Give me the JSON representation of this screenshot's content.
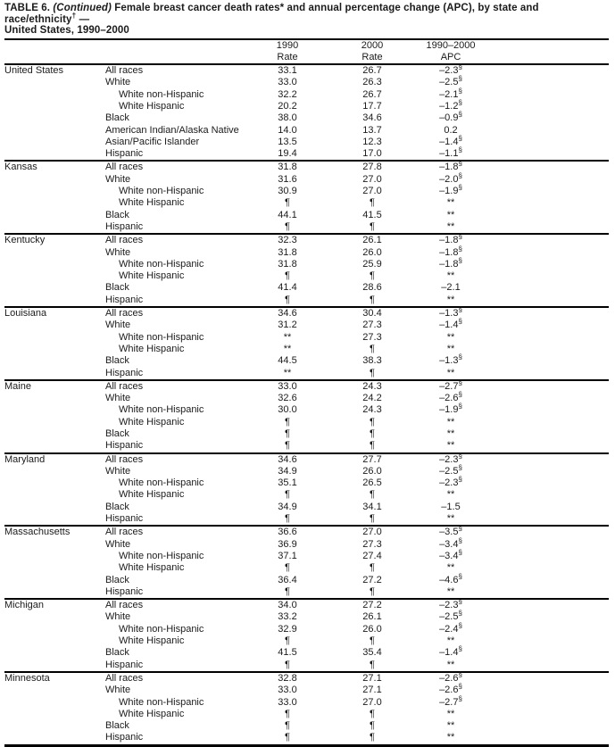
{
  "page": {
    "background": "#ffffff",
    "text_color": "#1b1b1b",
    "rule_color": "#000000"
  },
  "title": {
    "label": "TABLE 6.",
    "continued": "(Continued)",
    "segment1": "Female breast cancer death rates",
    "sup_rates": "*",
    "segment2": "and annual percentage change (APC), by state and race/ethnicity",
    "sup_ethnicity": "†",
    "dash": "—",
    "line2": "United States, 1990–2000"
  },
  "table": {
    "header": {
      "c1990": {
        "line1": "1990",
        "line2": "Rate"
      },
      "c2000": {
        "line1": "2000",
        "line2": "Rate"
      },
      "capc": {
        "line1": "1990–2000",
        "line2": "APC"
      }
    },
    "symbols": {
      "suppressed": "¶",
      "not_calculated": "**",
      "statistically_significant": "§"
    },
    "sections": [
      {
        "state": "United States",
        "rows": [
          {
            "race": "All races",
            "indent": false,
            "rate_1990": "33.1",
            "rate_2000": "26.7",
            "apc": "–2.3§"
          },
          {
            "race": "White",
            "indent": false,
            "rate_1990": "33.0",
            "rate_2000": "26.3",
            "apc": "–2.5§"
          },
          {
            "race": "White non-Hispanic",
            "indent": true,
            "rate_1990": "32.2",
            "rate_2000": "26.7",
            "apc": "–2.1§"
          },
          {
            "race": "White Hispanic",
            "indent": true,
            "rate_1990": "20.2",
            "rate_2000": "17.7",
            "apc": "–1.2§"
          },
          {
            "race": "Black",
            "indent": false,
            "rate_1990": "38.0",
            "rate_2000": "34.6",
            "apc": "–0.9§"
          },
          {
            "race": "American Indian/Alaska Native",
            "indent": false,
            "rate_1990": "14.0",
            "rate_2000": "13.7",
            "apc": "0.2"
          },
          {
            "race": "Asian/Pacific Islander",
            "indent": false,
            "rate_1990": "13.5",
            "rate_2000": "12.3",
            "apc": "–1.4§"
          },
          {
            "race": "Hispanic",
            "indent": false,
            "rate_1990": "19.4",
            "rate_2000": "17.0",
            "apc": "–1.1§"
          }
        ]
      },
      {
        "state": "Kansas",
        "rows": [
          {
            "race": "All races",
            "indent": false,
            "rate_1990": "31.8",
            "rate_2000": "27.8",
            "apc": "–1.8§"
          },
          {
            "race": "White",
            "indent": false,
            "rate_1990": "31.6",
            "rate_2000": "27.0",
            "apc": "–2.0§"
          },
          {
            "race": "White non-Hispanic",
            "indent": true,
            "rate_1990": "30.9",
            "rate_2000": "27.0",
            "apc": "–1.9§"
          },
          {
            "race": "White Hispanic",
            "indent": true,
            "rate_1990": "¶",
            "rate_2000": "¶",
            "apc": "**"
          },
          {
            "race": "Black",
            "indent": false,
            "rate_1990": "44.1",
            "rate_2000": "41.5",
            "apc": "**"
          },
          {
            "race": "Hispanic",
            "indent": false,
            "rate_1990": "¶",
            "rate_2000": "¶",
            "apc": "**"
          }
        ]
      },
      {
        "state": "Kentucky",
        "rows": [
          {
            "race": "All races",
            "indent": false,
            "rate_1990": "32.3",
            "rate_2000": "26.1",
            "apc": "–1.8§"
          },
          {
            "race": "White",
            "indent": false,
            "rate_1990": "31.8",
            "rate_2000": "26.0",
            "apc": "–1.8§"
          },
          {
            "race": "White non-Hispanic",
            "indent": true,
            "rate_1990": "31.8",
            "rate_2000": "25.9",
            "apc": "–1.8§"
          },
          {
            "race": "White Hispanic",
            "indent": true,
            "rate_1990": "¶",
            "rate_2000": "¶",
            "apc": "**"
          },
          {
            "race": "Black",
            "indent": false,
            "rate_1990": "41.4",
            "rate_2000": "28.6",
            "apc": "–2.1"
          },
          {
            "race": "Hispanic",
            "indent": false,
            "rate_1990": "¶",
            "rate_2000": "¶",
            "apc": "**"
          }
        ]
      },
      {
        "state": "Louisiana",
        "rows": [
          {
            "race": "All races",
            "indent": false,
            "rate_1990": "34.6",
            "rate_2000": "30.4",
            "apc": "–1.3§"
          },
          {
            "race": "White",
            "indent": false,
            "rate_1990": "31.2",
            "rate_2000": "27.3",
            "apc": "–1.4§"
          },
          {
            "race": "White non-Hispanic",
            "indent": true,
            "rate_1990": "**",
            "rate_2000": "27.3",
            "apc": "**"
          },
          {
            "race": "White Hispanic",
            "indent": true,
            "rate_1990": "**",
            "rate_2000": "¶",
            "apc": "**"
          },
          {
            "race": "Black",
            "indent": false,
            "rate_1990": "44.5",
            "rate_2000": "38.3",
            "apc": "–1.3§"
          },
          {
            "race": "Hispanic",
            "indent": false,
            "rate_1990": "**",
            "rate_2000": "¶",
            "apc": "**"
          }
        ]
      },
      {
        "state": "Maine",
        "rows": [
          {
            "race": "All races",
            "indent": false,
            "rate_1990": "33.0",
            "rate_2000": "24.3",
            "apc": "–2.7§"
          },
          {
            "race": "White",
            "indent": false,
            "rate_1990": "32.6",
            "rate_2000": "24.2",
            "apc": "–2.6§"
          },
          {
            "race": "White non-Hispanic",
            "indent": true,
            "rate_1990": "30.0",
            "rate_2000": "24.3",
            "apc": "–1.9§"
          },
          {
            "race": "White Hispanic",
            "indent": true,
            "rate_1990": "¶",
            "rate_2000": "¶",
            "apc": "**"
          },
          {
            "race": "Black",
            "indent": false,
            "rate_1990": "¶",
            "rate_2000": "¶",
            "apc": "**"
          },
          {
            "race": "Hispanic",
            "indent": false,
            "rate_1990": "¶",
            "rate_2000": "¶",
            "apc": "**"
          }
        ]
      },
      {
        "state": "Maryland",
        "rows": [
          {
            "race": "All races",
            "indent": false,
            "rate_1990": "34.6",
            "rate_2000": "27.7",
            "apc": "–2.3§"
          },
          {
            "race": "White",
            "indent": false,
            "rate_1990": "34.9",
            "rate_2000": "26.0",
            "apc": "–2.5§"
          },
          {
            "race": "White non-Hispanic",
            "indent": true,
            "rate_1990": "35.1",
            "rate_2000": "26.5",
            "apc": "–2.3§"
          },
          {
            "race": "White Hispanic",
            "indent": true,
            "rate_1990": "¶",
            "rate_2000": "¶",
            "apc": "**"
          },
          {
            "race": "Black",
            "indent": false,
            "rate_1990": "34.9",
            "rate_2000": "34.1",
            "apc": "–1.5"
          },
          {
            "race": "Hispanic",
            "indent": false,
            "rate_1990": "¶",
            "rate_2000": "¶",
            "apc": "**"
          }
        ]
      },
      {
        "state": "Massachusetts",
        "rows": [
          {
            "race": "All races",
            "indent": false,
            "rate_1990": "36.6",
            "rate_2000": "27.0",
            "apc": "–3.5§"
          },
          {
            "race": "White",
            "indent": false,
            "rate_1990": "36.9",
            "rate_2000": "27.3",
            "apc": "–3.4§"
          },
          {
            "race": "White non-Hispanic",
            "indent": true,
            "rate_1990": "37.1",
            "rate_2000": "27.4",
            "apc": "–3.4§"
          },
          {
            "race": "White Hispanic",
            "indent": true,
            "rate_1990": "¶",
            "rate_2000": "¶",
            "apc": "**"
          },
          {
            "race": "Black",
            "indent": false,
            "rate_1990": "36.4",
            "rate_2000": "27.2",
            "apc": "–4.6§"
          },
          {
            "race": "Hispanic",
            "indent": false,
            "rate_1990": "¶",
            "rate_2000": "¶",
            "apc": "**"
          }
        ]
      },
      {
        "state": "Michigan",
        "rows": [
          {
            "race": "All races",
            "indent": false,
            "rate_1990": "34.0",
            "rate_2000": "27.2",
            "apc": "–2.3§"
          },
          {
            "race": "White",
            "indent": false,
            "rate_1990": "33.2",
            "rate_2000": "26.1",
            "apc": "–2.5§"
          },
          {
            "race": "White non-Hispanic",
            "indent": true,
            "rate_1990": "32.9",
            "rate_2000": "26.0",
            "apc": "–2.4§"
          },
          {
            "race": "White Hispanic",
            "indent": true,
            "rate_1990": "¶",
            "rate_2000": "¶",
            "apc": "**"
          },
          {
            "race": "Black",
            "indent": false,
            "rate_1990": "41.5",
            "rate_2000": "35.4",
            "apc": "–1.4§"
          },
          {
            "race": "Hispanic",
            "indent": false,
            "rate_1990": "¶",
            "rate_2000": "¶",
            "apc": "**"
          }
        ]
      },
      {
        "state": "Minnesota",
        "rows": [
          {
            "race": "All races",
            "indent": false,
            "rate_1990": "32.8",
            "rate_2000": "27.1",
            "apc": "–2.6§"
          },
          {
            "race": "White",
            "indent": false,
            "rate_1990": "33.0",
            "rate_2000": "27.1",
            "apc": "–2.6§"
          },
          {
            "race": "White non-Hispanic",
            "indent": true,
            "rate_1990": "33.0",
            "rate_2000": "27.0",
            "apc": "–2.7§"
          },
          {
            "race": "White Hispanic",
            "indent": true,
            "rate_1990": "¶",
            "rate_2000": "¶",
            "apc": "**"
          },
          {
            "race": "Black",
            "indent": false,
            "rate_1990": "¶",
            "rate_2000": "¶",
            "apc": "**"
          },
          {
            "race": "Hispanic",
            "indent": false,
            "rate_1990": "¶",
            "rate_2000": "¶",
            "apc": "**"
          }
        ]
      }
    ]
  }
}
